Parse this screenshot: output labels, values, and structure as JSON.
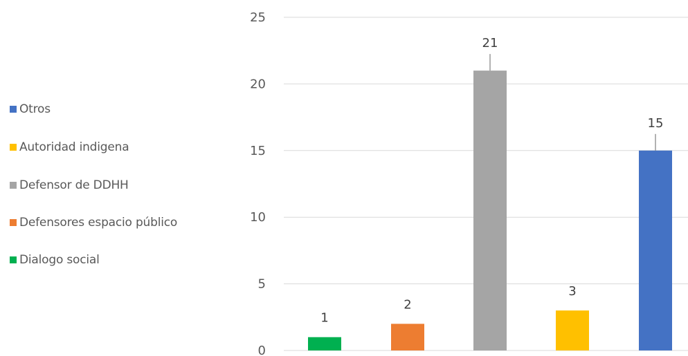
{
  "chart_data": {
    "type": "bar",
    "categories": [
      "Dialogo social",
      "Defensores espacio público",
      "Defensor de DDHH",
      "Autoridad indigena",
      "Otros"
    ],
    "values": [
      1,
      2,
      21,
      3,
      15
    ],
    "colors": [
      "#00B050",
      "#ED7D31",
      "#A5A5A5",
      "#FFC000",
      "#4472C4"
    ],
    "data_labels": [
      "1",
      "2",
      "21",
      "3",
      "15"
    ],
    "ylim": [
      0,
      25
    ],
    "yticks": [
      "0",
      "5",
      "10",
      "15",
      "20",
      "25"
    ],
    "grid": true,
    "error_bars": true,
    "legend_position": "left",
    "legend": [
      {
        "label": "Otros",
        "color": "#4472C4"
      },
      {
        "label": "Autoridad indigena",
        "color": "#FFC000"
      },
      {
        "label": "Defensor de DDHH",
        "color": "#A5A5A5"
      },
      {
        "label": "Defensores espacio público",
        "color": "#ED7D31"
      },
      {
        "label": "Dialogo social",
        "color": "#00B050"
      }
    ]
  }
}
